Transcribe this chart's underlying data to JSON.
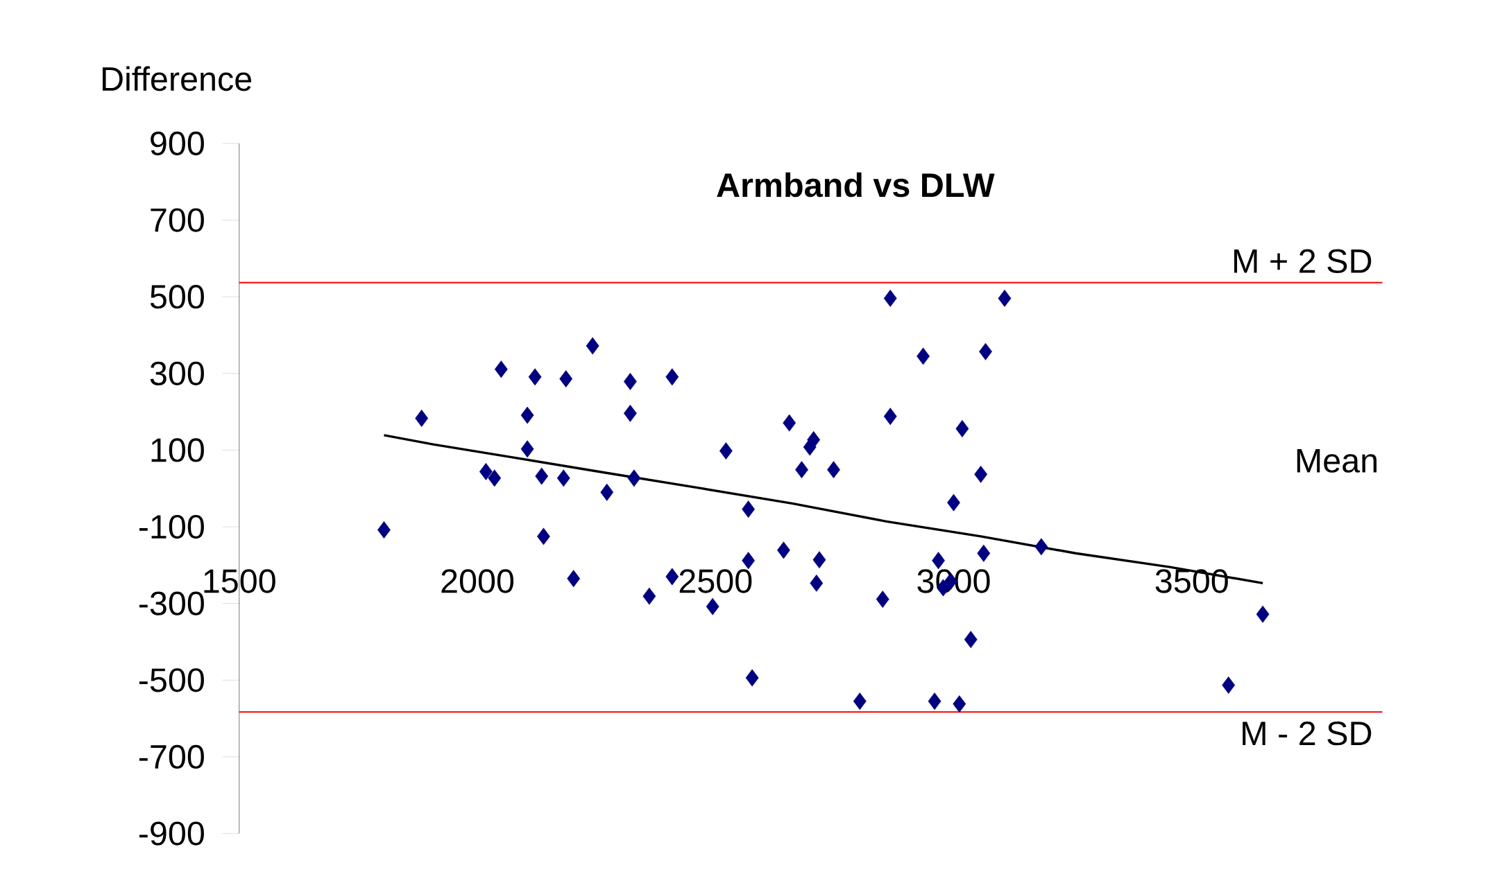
{
  "chart_data": {
    "type": "scatter",
    "title": "Armband vs DLW",
    "ylabel": "Difference",
    "xlim": [
      1500,
      3900
    ],
    "ylim": [
      -900,
      900
    ],
    "xticks": [
      1500,
      2000,
      2500,
      3000,
      3500
    ],
    "yticks": [
      -900,
      -700,
      -500,
      -300,
      -100,
      100,
      300,
      500,
      700,
      900
    ],
    "marker": "diamond",
    "series": [
      {
        "color": "#000080",
        "x": [
          1804,
          1883,
          2018,
          2036,
          2050,
          2105,
          2105,
          2121,
          2135,
          2139,
          2181,
          2186,
          2202,
          2242,
          2272,
          2321,
          2321,
          2329,
          2361,
          2409,
          2409,
          2494,
          2522,
          2569,
          2569,
          2577,
          2643,
          2655,
          2681,
          2698,
          2706,
          2718,
          2712,
          2748,
          2803,
          2851,
          2867,
          2867,
          2936,
          2960,
          2968,
          2978,
          2994,
          3000,
          3012,
          3018,
          3036,
          3057,
          3067,
          3063,
          3107,
          3184,
          3577,
          3649
        ],
        "values": [
          -108,
          183,
          44,
          27,
          311,
          191,
          103,
          291,
          32,
          -125,
          27,
          286,
          -235,
          372,
          -10,
          279,
          196,
          27,
          -281,
          291,
          -230,
          -308,
          98,
          -54,
          -188,
          -494,
          -161,
          171,
          49,
          108,
          127,
          -186,
          -247,
          49,
          -555,
          -289,
          496,
          188,
          345,
          -555,
          -188,
          -259,
          -242,
          -37,
          -562,
          156,
          -394,
          37,
          357,
          -169,
          496,
          -152,
          -513,
          -328
        ]
      },
      {
        "type": "line",
        "color": "#000000",
        "marker": "none",
        "x": [
          1804,
          1907,
          2065,
          2264,
          2462,
          2661,
          2859,
          3057,
          3256,
          3454,
          3649
        ],
        "values": [
          139,
          115,
          83,
          42,
          2,
          -39,
          -86,
          -125,
          -169,
          -205,
          -247
        ]
      }
    ],
    "ref_lines": [
      {
        "axis": "y",
        "value": 537,
        "label": "M + 2 SD",
        "color": "#ff0000"
      },
      {
        "axis": "y",
        "value": -583,
        "label": "M - 2 SD",
        "color": "#ff0000"
      }
    ],
    "annotations": [
      "Mean"
    ]
  }
}
